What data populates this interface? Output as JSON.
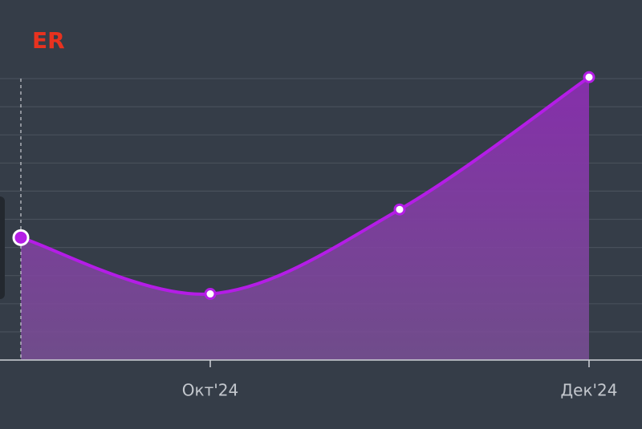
{
  "chart_data": {
    "type": "area",
    "title": "ER",
    "categories": [
      null,
      "Окт'24",
      null,
      "Дек'24"
    ],
    "values": [
      4.35,
      2.35,
      5.35,
      10.05
    ],
    "color": "#b41de6",
    "ylim": [
      0,
      10
    ],
    "yticks": [
      1,
      2,
      3,
      4,
      5,
      6,
      7,
      8,
      9,
      10
    ],
    "grid": true
  }
}
